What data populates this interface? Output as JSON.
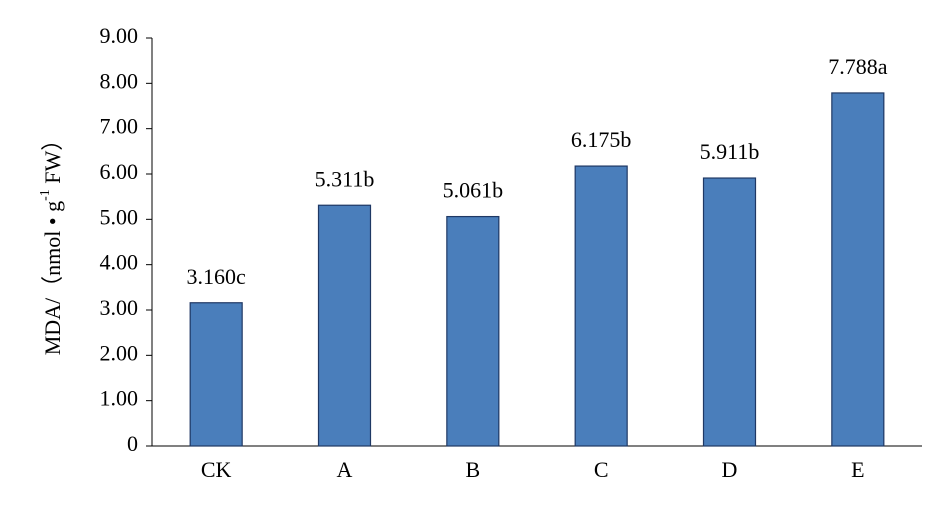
{
  "chart_data": {
    "type": "bar",
    "y_label": [
      "MDA/（nmol • g",
      "-1",
      " FW）"
    ],
    "categories": [
      "CK",
      "A",
      "B",
      "C",
      "D",
      "E"
    ],
    "values": [
      3.16,
      5.311,
      5.061,
      6.175,
      5.911,
      7.788
    ],
    "value_labels": [
      "3.160c",
      "5.311b",
      "5.061b",
      "6.175b",
      "5.911b",
      "7.788a"
    ],
    "color": "#4a7ebb",
    "ylim": [
      0,
      9
    ],
    "yticks": [
      0,
      {
        "value": 1,
        "label": "1.00"
      },
      {
        "value": 2,
        "label": "2.00"
      },
      {
        "value": 3,
        "label": "3.00"
      },
      {
        "value": 4,
        "label": "4.00"
      },
      {
        "value": 5,
        "label": "5.00"
      },
      {
        "value": 6,
        "label": "6.00"
      },
      {
        "value": 7,
        "label": "7.00"
      },
      {
        "value": 8,
        "label": "8.00"
      },
      {
        "value": 9,
        "label": "9.00"
      }
    ],
    "grid": false
  }
}
